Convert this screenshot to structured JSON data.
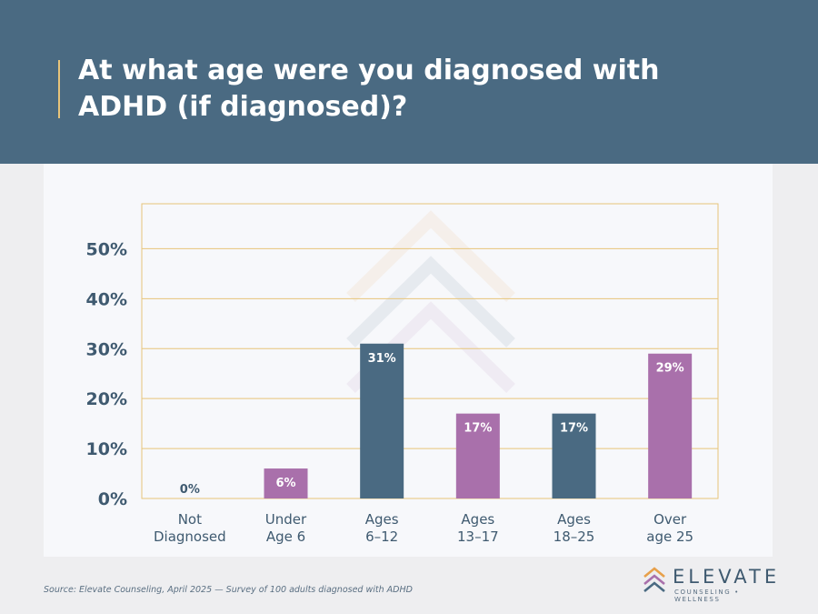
{
  "header": {
    "title": "At what age were you diagnosed with ADHD (if diagnosed)?"
  },
  "chart_data": {
    "type": "bar",
    "categories": [
      [
        "Not",
        "Diagnosed"
      ],
      [
        "Under",
        "Age 6"
      ],
      [
        "Ages",
        "6–12"
      ],
      [
        "Ages",
        "13–17"
      ],
      [
        "Ages",
        "18–25"
      ],
      [
        "Over",
        "age 25"
      ]
    ],
    "values": [
      0,
      6,
      31,
      17,
      17,
      29
    ],
    "data_labels": [
      "0%",
      "6%",
      "31%",
      "17%",
      "17%",
      "29%"
    ],
    "bar_colors": [
      "#a970ab",
      "#a970ab",
      "#4a6a82",
      "#a970ab",
      "#4a6a82",
      "#a970ab"
    ],
    "ylim": [
      0,
      59
    ],
    "yticks": [
      0,
      10,
      20,
      30,
      40,
      50
    ],
    "ytick_labels": [
      "0%",
      "10%",
      "20%",
      "30%",
      "40%",
      "50%"
    ],
    "grid": true,
    "title": "",
    "xlabel": "",
    "ylabel": ""
  },
  "footer": {
    "source": "Source: Elevate Counseling, April 2025 — Survey of 100 adults diagnosed with ADHD"
  },
  "logo": {
    "name": "ELEVATE",
    "tagline": "COUNSELING • WELLNESS"
  },
  "colors": {
    "header_bg": "#4a6a82",
    "grid": "#e7c47a",
    "purple": "#a970ab",
    "slate": "#4a6a82"
  }
}
